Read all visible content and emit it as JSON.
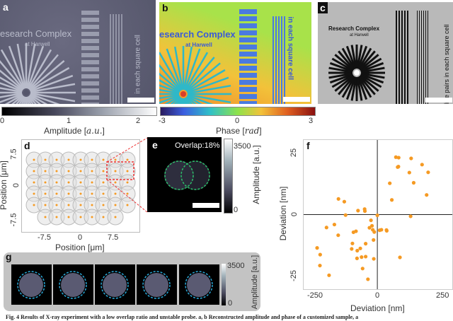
{
  "panels": {
    "a": {
      "label": "a",
      "sample_text": "esearch Complex",
      "sample_sub": "at Harwell",
      "side_text": "in each square cell"
    },
    "b": {
      "label": "b",
      "sample_text": "esearch Complex",
      "sample_sub": "at Harwell",
      "side_text": "in each square cell"
    },
    "c": {
      "label": "c",
      "sample_text": "Research Complex",
      "sample_sub": "at Harwell",
      "side_text": "line pairs in each square cell"
    },
    "d": {
      "label": "d"
    },
    "e": {
      "label": "e",
      "overlap_text": "Overlap:18%"
    },
    "f": {
      "label": "f"
    },
    "g": {
      "label": "g"
    }
  },
  "colorbars": {
    "amplitude_ab": {
      "ticks": [
        "0",
        "1",
        "2"
      ],
      "label": "Amplitude [",
      "unit": "a.u.",
      "close": "]"
    },
    "phase": {
      "ticks": [
        "-3",
        "0",
        "3"
      ],
      "label": "Phase [",
      "unit": "rad",
      "close": "]"
    },
    "amplitude_e": {
      "max": "3500",
      "min": "0",
      "label": "Amplitude [a.u.]"
    },
    "amplitude_g": {
      "max": "3500",
      "min": "0",
      "label": "Amplitude [a.u.]"
    }
  },
  "panel_d": {
    "xticks": [
      "-7.5",
      "0",
      "7.5"
    ],
    "yticks": [
      "7.5",
      "0",
      "-7.5"
    ],
    "xlabel": "Position [μm]",
    "ylabel": "Position [μm]",
    "probe_color": "#f59a23"
  },
  "chart_data": {
    "type": "scatter",
    "xlabel": "Deviation [nm]",
    "ylabel": "Deviation [nm]",
    "xlim": [
      -290,
      295
    ],
    "ylim": [
      -30,
      30
    ],
    "xticks": [
      "-250",
      "0",
      "250"
    ],
    "yticks": [
      "25",
      "0",
      "-25"
    ],
    "grid": false,
    "color": "#f59a23",
    "points": [
      [
        73,
        23.1
      ],
      [
        84,
        22.9
      ],
      [
        133,
        22.6
      ],
      [
        176,
        20.1
      ],
      [
        80,
        19.1
      ],
      [
        83,
        19.3
      ],
      [
        126,
        16.9
      ],
      [
        200,
        17
      ],
      [
        49,
        12.6
      ],
      [
        143,
        12.8
      ],
      [
        194,
        7.9
      ],
      [
        57,
        5.9
      ],
      [
        -153,
        6.3
      ],
      [
        -130,
        5.2
      ],
      [
        -76,
        1.6
      ],
      [
        -50,
        2.2
      ],
      [
        -49,
        1.4
      ],
      [
        -125,
        -0.2
      ],
      [
        0,
        -0.3
      ],
      [
        131,
        -0.7
      ],
      [
        -169,
        -4
      ],
      [
        -200,
        -5.2
      ],
      [
        -25,
        -2.3
      ],
      [
        -21,
        -4.5
      ],
      [
        -31,
        -5.3
      ],
      [
        -18,
        -6.1
      ],
      [
        -12,
        -7
      ],
      [
        9,
        -6.3
      ],
      [
        16,
        -6.1
      ],
      [
        36,
        -6.2
      ],
      [
        37,
        -6.5
      ],
      [
        -94,
        -7.1
      ],
      [
        -84,
        -6.7
      ],
      [
        -154,
        -8.3
      ],
      [
        -15,
        -10.2
      ],
      [
        -98,
        -11.6
      ],
      [
        -46,
        -11.7
      ],
      [
        -237,
        -13.4
      ],
      [
        -101,
        -13.8
      ],
      [
        -67,
        -13.6
      ],
      [
        -79,
        -14.5
      ],
      [
        -225,
        -16.1
      ],
      [
        -80,
        -17.6
      ],
      [
        -62,
        -17.1
      ],
      [
        -46,
        -16.9
      ],
      [
        -14,
        -17.8
      ],
      [
        89,
        -17.2
      ],
      [
        -226,
        -20.5
      ],
      [
        -58,
        -21.7
      ],
      [
        -190,
        -24.4
      ],
      [
        -37,
        -26
      ]
    ]
  },
  "caption": "Fig. 4 Results of X-ray experiment with a low overlap ratio and unstable probe. a, b Reconstructed amplitude and phase of a customized sample, a"
}
